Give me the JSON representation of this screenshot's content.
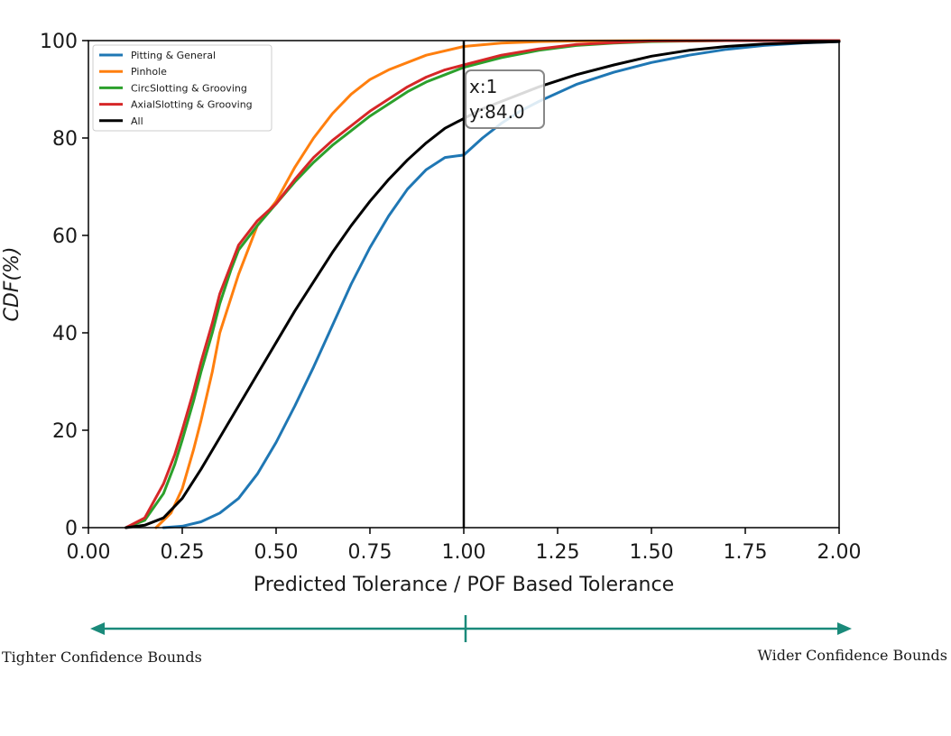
{
  "chart_data": {
    "type": "line",
    "title": "",
    "xlabel": "Predicted Tolerance / POF Based Tolerance",
    "ylabel": "CDF(%)",
    "xlim": [
      0,
      2
    ],
    "ylim": [
      0,
      100
    ],
    "xticks": [
      "0.00",
      "0.25",
      "0.50",
      "0.75",
      "1.00",
      "1.25",
      "1.50",
      "1.75",
      "2.00"
    ],
    "yticks": [
      "0",
      "20",
      "40",
      "60",
      "80",
      "100"
    ],
    "grid": false,
    "legend_position": "top-left",
    "series": [
      {
        "name": "Pitting & General",
        "color": "#1f77b4",
        "x": [
          0.2,
          0.25,
          0.3,
          0.35,
          0.4,
          0.45,
          0.5,
          0.55,
          0.6,
          0.65,
          0.7,
          0.75,
          0.8,
          0.85,
          0.9,
          0.95,
          1.0,
          1.05,
          1.1,
          1.15,
          1.2,
          1.3,
          1.4,
          1.5,
          1.6,
          1.7,
          1.8,
          1.9,
          2.0
        ],
        "y": [
          0,
          0.3,
          1.2,
          3,
          6,
          11,
          17.5,
          25,
          33,
          41.5,
          50,
          57.5,
          64,
          69.5,
          73.5,
          76,
          76.5,
          80,
          83,
          85.5,
          87.5,
          91,
          93.5,
          95.5,
          97,
          98.2,
          99,
          99.5,
          99.8
        ]
      },
      {
        "name": "Pinhole",
        "color": "#ff7f0e",
        "x": [
          0.18,
          0.22,
          0.25,
          0.28,
          0.3,
          0.33,
          0.35,
          0.4,
          0.45,
          0.5,
          0.55,
          0.6,
          0.65,
          0.7,
          0.75,
          0.8,
          0.9,
          1.0,
          1.1,
          1.2,
          1.3,
          1.5,
          1.7,
          2.0
        ],
        "y": [
          0,
          3,
          8,
          16,
          22,
          32,
          40,
          52,
          62,
          67,
          74,
          80,
          85,
          89,
          92,
          94,
          97,
          98.8,
          99.5,
          99.8,
          99.9,
          100,
          100,
          100
        ]
      },
      {
        "name": "CircSlotting & Grooving",
        "color": "#2ca02c",
        "x": [
          0.1,
          0.15,
          0.2,
          0.23,
          0.25,
          0.28,
          0.3,
          0.33,
          0.35,
          0.38,
          0.4,
          0.45,
          0.5,
          0.55,
          0.6,
          0.65,
          0.7,
          0.75,
          0.8,
          0.85,
          0.9,
          0.95,
          1.0,
          1.1,
          1.2,
          1.3,
          1.4,
          1.5,
          1.7,
          2.0
        ],
        "y": [
          0,
          1.5,
          7,
          13,
          18,
          26,
          32,
          40,
          46,
          53,
          57,
          62,
          66.5,
          71,
          75,
          78.5,
          81.5,
          84.5,
          87,
          89.5,
          91.5,
          93,
          94.5,
          96.5,
          98,
          99,
          99.5,
          99.8,
          100,
          100
        ]
      },
      {
        "name": "AxialSlotting & Grooving",
        "color": "#d62728",
        "x": [
          0.1,
          0.15,
          0.2,
          0.23,
          0.25,
          0.28,
          0.3,
          0.33,
          0.35,
          0.38,
          0.4,
          0.45,
          0.5,
          0.55,
          0.6,
          0.65,
          0.7,
          0.75,
          0.8,
          0.85,
          0.9,
          0.95,
          1.0,
          1.1,
          1.2,
          1.3,
          1.4,
          1.5,
          1.7,
          2.0
        ],
        "y": [
          0,
          2,
          9,
          15,
          20,
          28,
          34,
          42,
          48,
          54,
          58,
          63,
          66.5,
          71.5,
          76,
          79.5,
          82.5,
          85.5,
          88,
          90.5,
          92.5,
          94,
          95,
          97,
          98.3,
          99.2,
          99.6,
          99.9,
          100,
          100
        ]
      },
      {
        "name": "All",
        "color": "#000000",
        "x": [
          0.1,
          0.15,
          0.2,
          0.25,
          0.3,
          0.35,
          0.4,
          0.45,
          0.5,
          0.55,
          0.6,
          0.65,
          0.7,
          0.75,
          0.8,
          0.85,
          0.9,
          0.95,
          1.0,
          1.05,
          1.1,
          1.2,
          1.3,
          1.4,
          1.5,
          1.6,
          1.7,
          1.8,
          2.0
        ],
        "y": [
          0,
          0.5,
          2,
          6,
          12,
          18.5,
          25,
          31.5,
          38,
          44.5,
          50.5,
          56.5,
          62,
          67,
          71.5,
          75.5,
          79,
          82,
          84,
          86,
          87.5,
          90.5,
          93,
          95,
          96.8,
          98,
          98.8,
          99.3,
          99.8
        ]
      }
    ],
    "annotation": {
      "vline_x": 1.0,
      "box_x_text": "x:1",
      "box_y_text": "y:84.0"
    }
  },
  "bounds": {
    "left_label": "Tighter Confidence Bounds",
    "right_label": "Wider Confidence Bounds",
    "arrow_color": "#1a8a7a"
  }
}
